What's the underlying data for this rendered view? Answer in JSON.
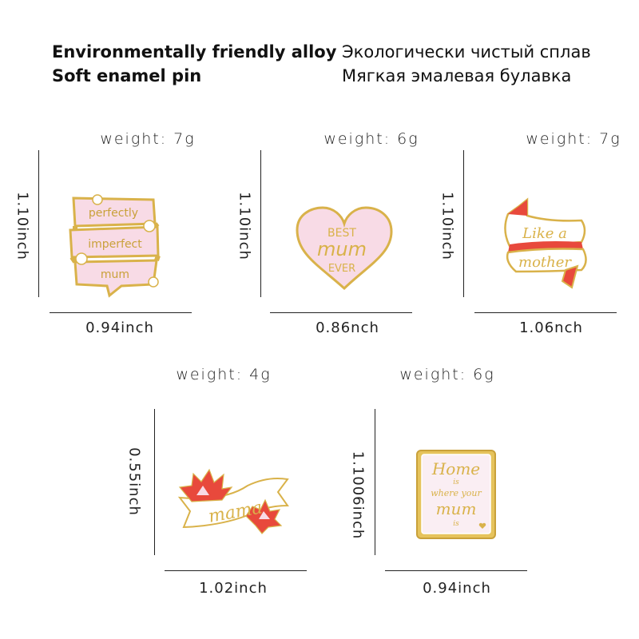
{
  "header": {
    "en": [
      "Environmentally friendly alloy",
      "Soft enamel pin"
    ],
    "ru": [
      "Экологически чистый сплав",
      "Мягкая эмалевая булавка"
    ]
  },
  "colors": {
    "gold": "#d9b24a",
    "pink": "#f8dbe6",
    "red": "#e8493c",
    "text": "#222222"
  },
  "pins": [
    {
      "weight": "weight:  7g",
      "height": "1.10inch",
      "width": "0.94inch",
      "lettering": [
        "perfectly",
        "imperfect",
        "mum"
      ]
    },
    {
      "weight": "weight:  6g",
      "height": "1.10inch",
      "width": "0.86nch",
      "lettering": [
        "BEST",
        "mum",
        "EVER"
      ]
    },
    {
      "weight": "weight:  7g",
      "height": "1.10inch",
      "width": "1.06nch",
      "lettering": [
        "Like a",
        "mother"
      ]
    },
    {
      "weight": "weight:  4g",
      "height": "0.55inch",
      "width": "1.02inch",
      "lettering": [
        "mama"
      ]
    },
    {
      "weight": "weight:  6g",
      "height": "1.1006inch",
      "width": "0.94inch",
      "lettering": [
        "Home",
        "is",
        "where your",
        "mum",
        "is"
      ]
    }
  ]
}
